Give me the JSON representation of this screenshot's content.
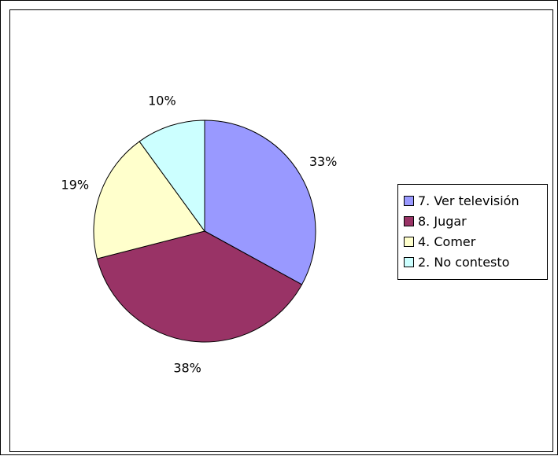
{
  "chart_data": {
    "type": "pie",
    "title": "",
    "categories": [
      "7. Ver televisión",
      "8. Jugar",
      "4. Comer",
      "2. No contesto"
    ],
    "values": [
      33,
      38,
      19,
      10
    ],
    "data_labels": [
      "33%",
      "38%",
      "19%",
      "10%"
    ],
    "colors": [
      "#9999FF",
      "#993366",
      "#FFFFCC",
      "#CCFFFF"
    ],
    "legend": "right",
    "start_angle_deg": 0,
    "direction": "clockwise"
  }
}
